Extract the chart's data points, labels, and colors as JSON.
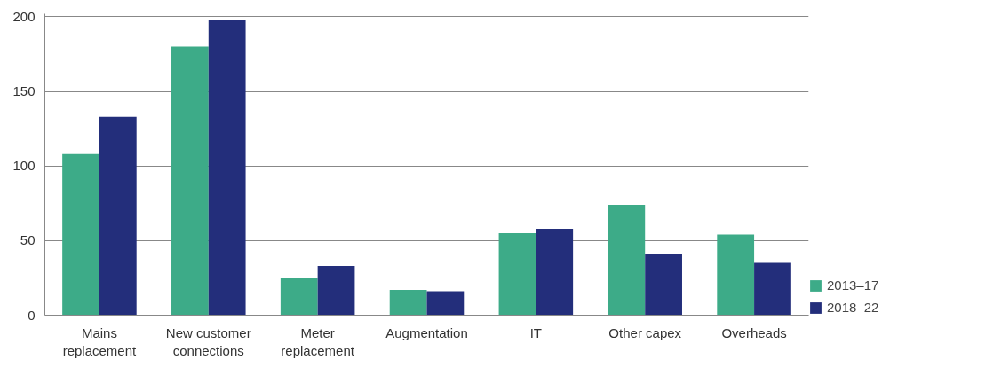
{
  "chart_data": {
    "type": "bar",
    "categories": [
      "Mains replacement",
      "New customer connections",
      "Meter replacement",
      "Augmentation",
      "IT",
      "Other capex",
      "Overheads"
    ],
    "series": [
      {
        "name": "2013–17",
        "color": "#3dab88",
        "values": [
          108,
          180,
          25,
          17,
          55,
          74,
          54
        ]
      },
      {
        "name": "2018–22",
        "color": "#232e7b",
        "values": [
          133,
          198,
          33,
          16,
          58,
          41,
          35
        ]
      }
    ],
    "ylim": [
      0,
      202
    ],
    "yticks": [
      0,
      50,
      100,
      150,
      200
    ],
    "grid": "y",
    "legend": "bottom right"
  }
}
